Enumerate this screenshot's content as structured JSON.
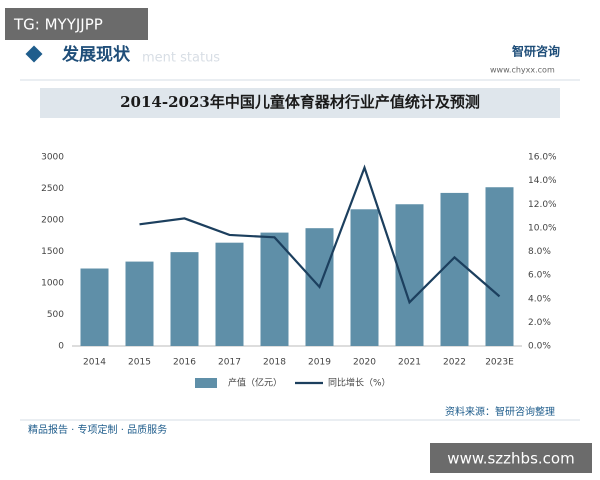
{
  "overlay": {
    "top_left": "TG: MYYJJPP",
    "bottom_right": "www.szzhbs.com"
  },
  "header": {
    "section": "发展现状",
    "section_en": "ment status",
    "logo": "智研咨询",
    "site": "www.chyxx.com"
  },
  "chart_data": {
    "type": "bar-line",
    "title": "2014-2023年中国儿童体育器材行业产值统计及预测",
    "categories": [
      "2014",
      "2015",
      "2016",
      "2017",
      "2018",
      "2019",
      "2020",
      "2021",
      "2022",
      "2023E"
    ],
    "series": [
      {
        "name": "产值（亿元）",
        "type": "bar",
        "color": "#5f8fa8",
        "values": [
          1230,
          1340,
          1490,
          1640,
          1800,
          1870,
          2170,
          2250,
          2430,
          2520
        ]
      },
      {
        "name": "同比增长（%）",
        "type": "line",
        "axis": "y2",
        "color": "#1c3f5e",
        "values": [
          null,
          10.3,
          10.8,
          9.4,
          9.2,
          5.0,
          15.1,
          3.7,
          7.5,
          4.2
        ]
      }
    ],
    "ylim": [
      0,
      3000
    ],
    "yticks": [
      0,
      500,
      1000,
      1500,
      2000,
      2500,
      3000
    ],
    "y2lim": [
      0,
      16
    ],
    "y2ticks": [
      {
        "value": 0,
        "label": "0.0%"
      },
      {
        "value": 2,
        "label": "2.0%"
      },
      {
        "value": 4,
        "label": "4.0%"
      },
      {
        "value": 6,
        "label": "6.0%"
      },
      {
        "value": 8,
        "label": "8.0%"
      },
      {
        "value": 10,
        "label": "10.0%"
      },
      {
        "value": 12,
        "label": "12.0%"
      },
      {
        "value": 14,
        "label": "14.0%"
      },
      {
        "value": 16,
        "label": "16.0%"
      }
    ],
    "source": "资料来源：智研咨询整理"
  },
  "footer": {
    "slogan": "精品报告 · 专项定制 · 品质服务"
  }
}
